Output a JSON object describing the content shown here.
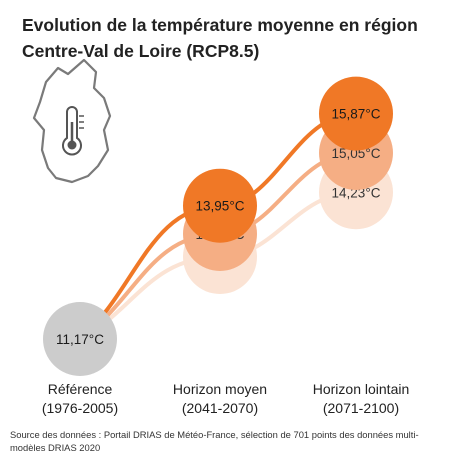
{
  "title": {
    "line1": "Evolution de la température moyenne en région",
    "line2": "Centre-Val de Loire (RCP8.5)"
  },
  "chart_data": {
    "type": "scatter",
    "categories": [
      {
        "label": "Référence",
        "period": "(1976-2005)"
      },
      {
        "label": "Horizon moyen",
        "period": "(2041-2070)"
      },
      {
        "label": "Horizon lointain",
        "period": "(2071-2100)"
      }
    ],
    "reference": {
      "value": 11.17,
      "label": "11,17°C",
      "color": "#cccccc"
    },
    "series": [
      {
        "values": [
          11.17,
          12.88,
          14.23
        ],
        "labels": [
          "11,17°C",
          "12,88°C",
          "14,23°C"
        ],
        "color": "#fbe3d4"
      },
      {
        "values": [
          11.17,
          13.36,
          15.05
        ],
        "labels": [
          "11,17°C",
          "13,36°C",
          "15,05°C"
        ],
        "color": "#f5ae84"
      },
      {
        "values": [
          11.17,
          13.95,
          15.87
        ],
        "labels": [
          "11,17°C",
          "13,95°C",
          "15,87°C"
        ],
        "color": "#f07826"
      }
    ],
    "unit": "°C"
  },
  "icons": {
    "region": "region-outline-icon",
    "thermometer": "thermometer-icon"
  },
  "source": {
    "text": "Source des données : Portail DRIAS de Météo-France, sélection de 701 points des données multi-modèles DRIAS 2020"
  }
}
